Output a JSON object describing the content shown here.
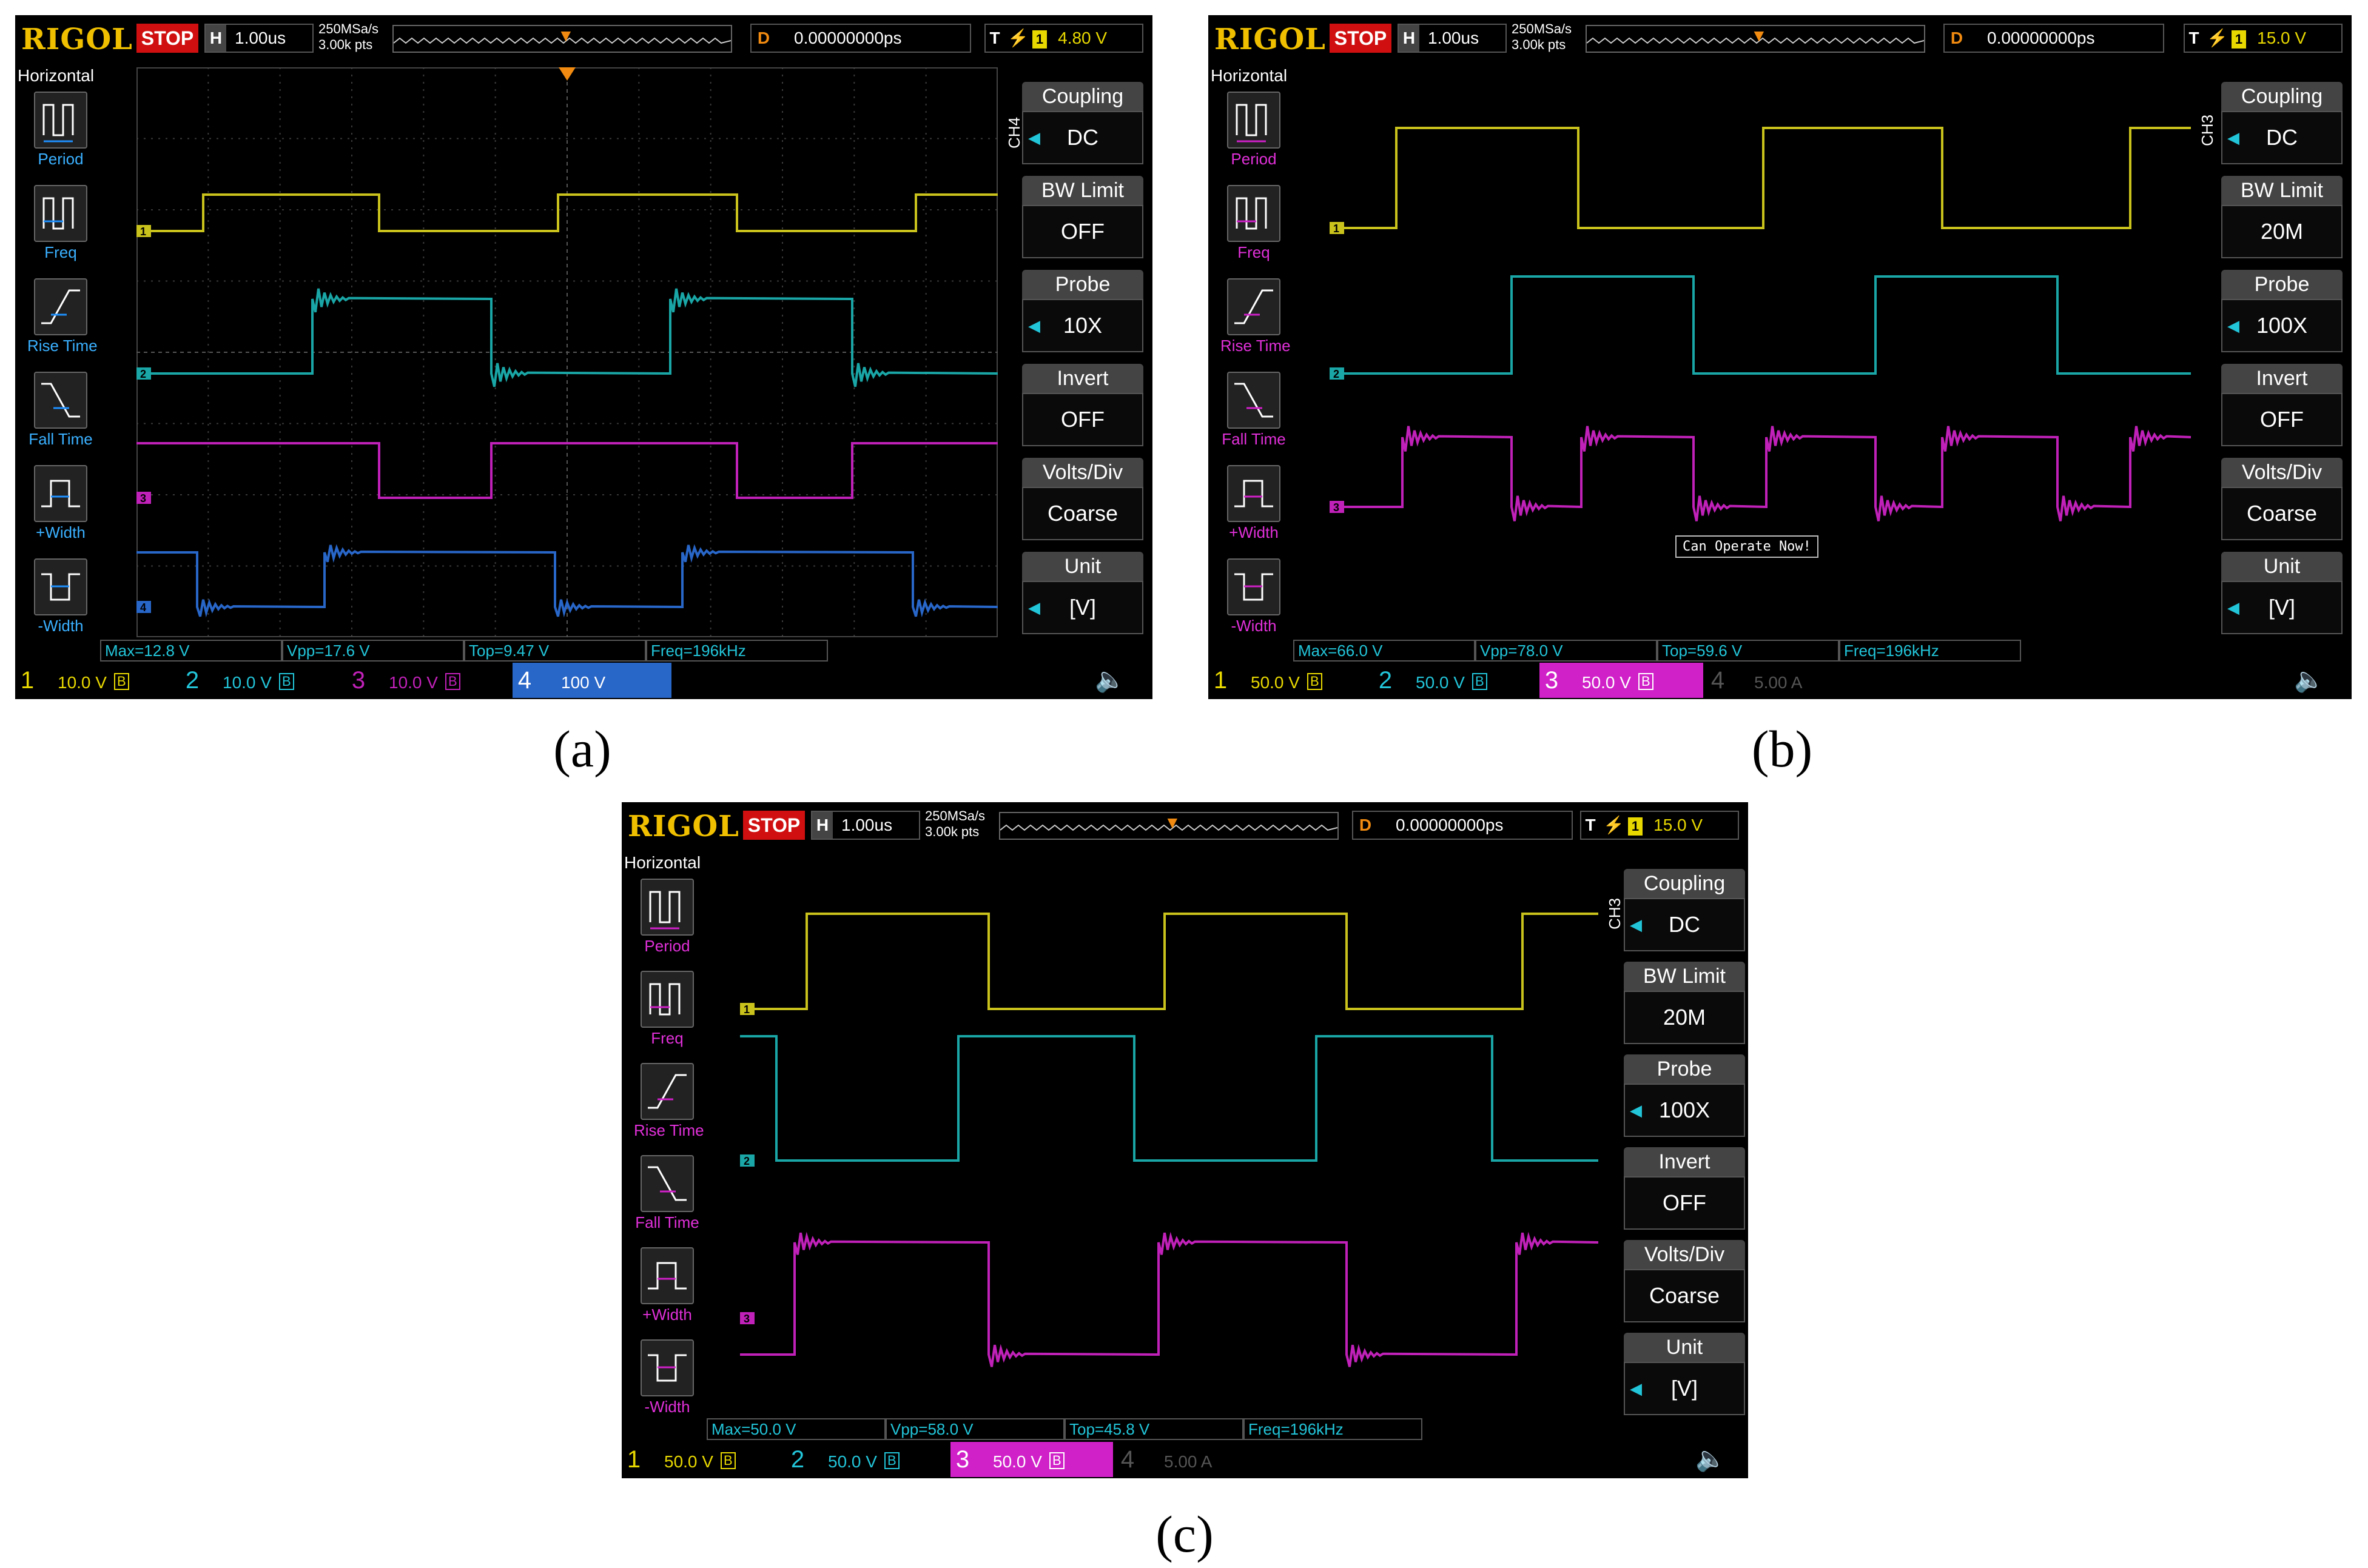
{
  "colors": {
    "ch1": "#c9c21c",
    "ch2": "#1aa6a6",
    "ch3": "#c021b8",
    "ch4": "#2866c8",
    "trigger": "#f08a10",
    "logo": "#f0c000"
  },
  "panels": [
    {
      "label": "(a)",
      "logo": "RIGOL",
      "run_state": "STOP",
      "horizontal": {
        "key": "H",
        "value": "1.00us"
      },
      "sample": {
        "rate": "250MSa/s",
        "points": "3.00k pts"
      },
      "delay": {
        "key": "D",
        "value": "0.00000000ps"
      },
      "trigger": {
        "key": "T",
        "source": "1",
        "level": "4.80 V"
      },
      "left_menu": {
        "title": "Horizontal",
        "items": [
          "Period",
          "Freq",
          "Rise Time",
          "Fall Time",
          "+Width",
          "-Width"
        ]
      },
      "channel_menu": "CH4",
      "right_menu": [
        {
          "head": "Coupling",
          "value": "DC"
        },
        {
          "head": "BW Limit",
          "value": "OFF"
        },
        {
          "head": "Probe",
          "value": "10X"
        },
        {
          "head": "Invert",
          "value": "OFF"
        },
        {
          "head": "Volts/Div",
          "value": "Coarse"
        },
        {
          "head": "Unit",
          "value": "[V]"
        }
      ],
      "measurements": [
        "Max=12.8 V",
        "Vpp=17.6 V",
        "Top=9.47 V",
        "Freq=196kHz"
      ],
      "channels": [
        {
          "num": "1",
          "scale": "10.0 V"
        },
        {
          "num": "2",
          "scale": "10.0 V"
        },
        {
          "num": "3",
          "scale": "10.0 V"
        },
        {
          "num": "4",
          "scale": "100 V"
        }
      ],
      "message": ""
    },
    {
      "label": "(b)",
      "logo": "RIGOL",
      "run_state": "STOP",
      "horizontal": {
        "key": "H",
        "value": "1.00us"
      },
      "sample": {
        "rate": "250MSa/s",
        "points": "3.00k pts"
      },
      "delay": {
        "key": "D",
        "value": "0.00000000ps"
      },
      "trigger": {
        "key": "T",
        "source": "1",
        "level": "15.0 V"
      },
      "left_menu": {
        "title": "Horizontal",
        "items": [
          "Period",
          "Freq",
          "Rise Time",
          "Fall Time",
          "+Width",
          "-Width"
        ]
      },
      "channel_menu": "CH3",
      "right_menu": [
        {
          "head": "Coupling",
          "value": "DC"
        },
        {
          "head": "BW Limit",
          "value": "20M"
        },
        {
          "head": "Probe",
          "value": "100X"
        },
        {
          "head": "Invert",
          "value": "OFF"
        },
        {
          "head": "Volts/Div",
          "value": "Coarse"
        },
        {
          "head": "Unit",
          "value": "[V]"
        }
      ],
      "measurements": [
        "Max=66.0 V",
        "Vpp=78.0 V",
        "Top=59.6 V",
        "Freq=196kHz"
      ],
      "channels": [
        {
          "num": "1",
          "scale": "50.0 V"
        },
        {
          "num": "2",
          "scale": "50.0 V"
        },
        {
          "num": "3",
          "scale": "50.0 V"
        },
        {
          "num": "4",
          "scale": "5.00 A"
        }
      ],
      "message": "Can Operate Now!"
    },
    {
      "label": "(c)",
      "logo": "RIGOL",
      "run_state": "STOP",
      "horizontal": {
        "key": "H",
        "value": "1.00us"
      },
      "sample": {
        "rate": "250MSa/s",
        "points": "3.00k pts"
      },
      "delay": {
        "key": "D",
        "value": "0.00000000ps"
      },
      "trigger": {
        "key": "T",
        "source": "1",
        "level": "15.0 V"
      },
      "left_menu": {
        "title": "Horizontal",
        "items": [
          "Period",
          "Freq",
          "Rise Time",
          "Fall Time",
          "+Width",
          "-Width"
        ]
      },
      "channel_menu": "CH3",
      "right_menu": [
        {
          "head": "Coupling",
          "value": "DC"
        },
        {
          "head": "BW Limit",
          "value": "20M"
        },
        {
          "head": "Probe",
          "value": "100X"
        },
        {
          "head": "Invert",
          "value": "OFF"
        },
        {
          "head": "Volts/Div",
          "value": "Coarse"
        },
        {
          "head": "Unit",
          "value": "[V]"
        }
      ],
      "measurements": [
        "Max=50.0 V",
        "Vpp=58.0 V",
        "Top=45.8 V",
        "Freq=196kHz"
      ],
      "channels": [
        {
          "num": "1",
          "scale": "50.0 V"
        },
        {
          "num": "2",
          "scale": "50.0 V"
        },
        {
          "num": "3",
          "scale": "50.0 V"
        },
        {
          "num": "4",
          "scale": "5.00 A"
        }
      ],
      "message": ""
    }
  ]
}
